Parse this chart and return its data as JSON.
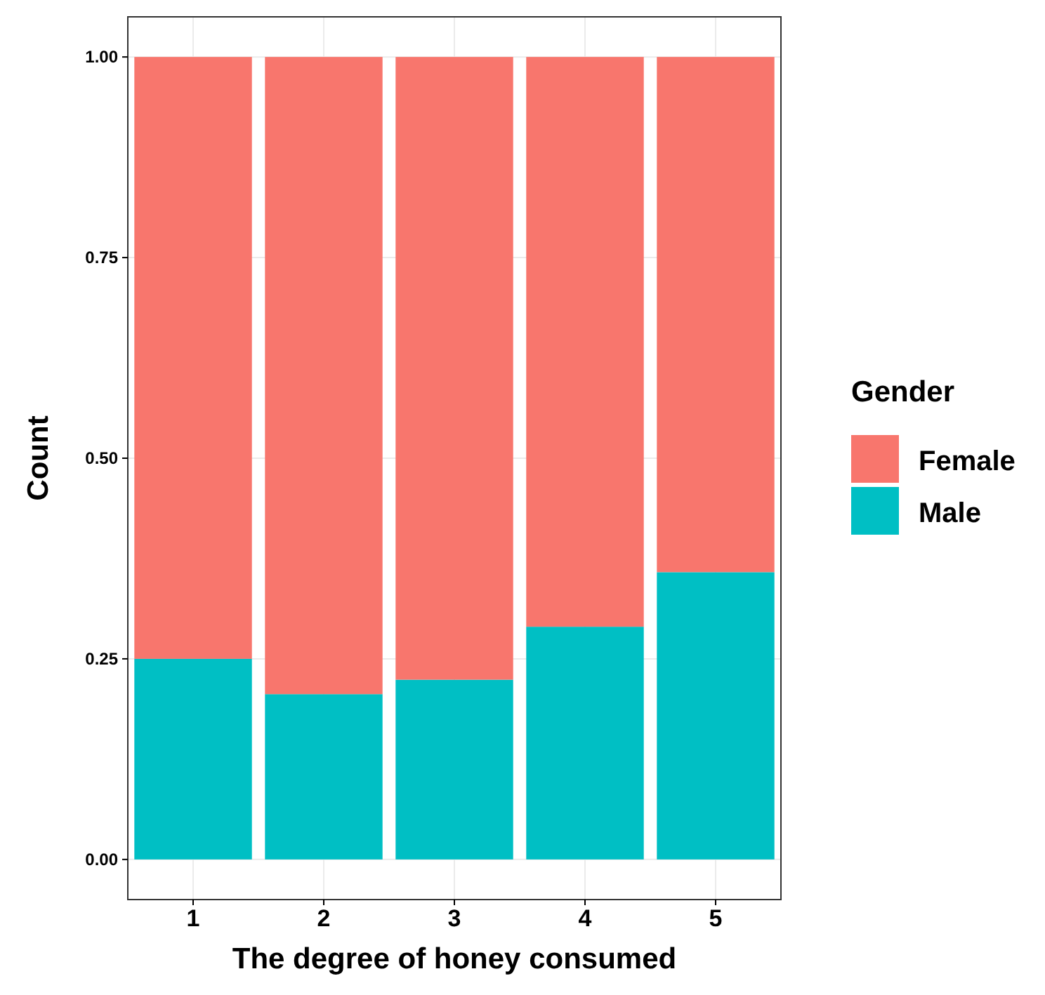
{
  "chart_data": {
    "type": "bar",
    "xlabel": "The degree of honey consumed",
    "ylabel": "Count",
    "legend_title": "Gender",
    "categories": [
      "1",
      "2",
      "3",
      "4",
      "5"
    ],
    "series": [
      {
        "name": "Male",
        "color": "#00bfc4",
        "values": [
          0.25,
          0.206,
          0.224,
          0.29,
          0.358
        ]
      },
      {
        "name": "Female",
        "color": "#f8766d",
        "values": [
          0.75,
          0.794,
          0.776,
          0.71,
          0.642
        ]
      }
    ],
    "stacked": true,
    "ylim": [
      -0.05,
      1.05
    ],
    "yticks": [
      {
        "value": 0,
        "label": "0.00"
      },
      {
        "value": 0.25,
        "label": "0.25"
      },
      {
        "value": 0.5,
        "label": "0.50"
      },
      {
        "value": 0.75,
        "label": "0.75"
      },
      {
        "value": 1,
        "label": "1.00"
      }
    ],
    "grid": true,
    "legend": "right"
  }
}
